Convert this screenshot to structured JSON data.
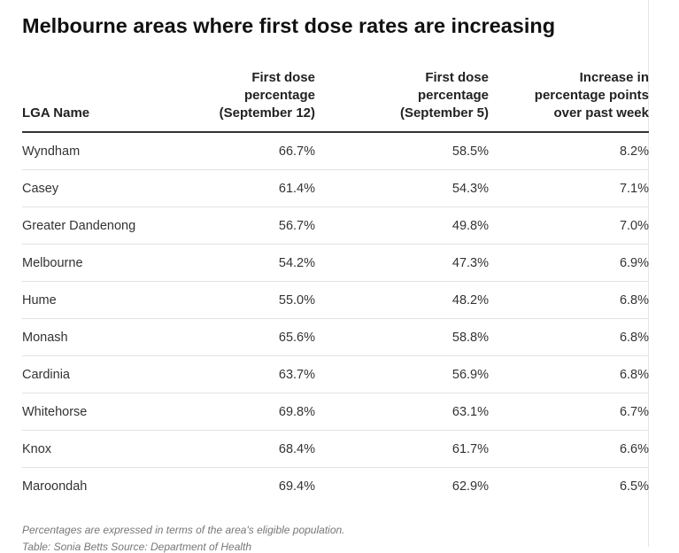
{
  "title": "Melbourne areas where first dose rates are increasing",
  "columns": {
    "lga": "LGA Name",
    "sep12": [
      "First dose",
      "percentage",
      "(September 12)"
    ],
    "sep5": [
      "First dose",
      "percentage",
      "(September 5)"
    ],
    "increase": [
      "Increase in",
      "percentage points",
      "over past week"
    ]
  },
  "chart_data": {
    "type": "table",
    "title": "Melbourne areas where first dose rates are increasing",
    "headers": [
      "LGA Name",
      "First dose percentage (September 12)",
      "First dose percentage (September 5)",
      "Increase in percentage points over past week"
    ],
    "rows": [
      [
        "Wyndham",
        "66.7%",
        "58.5%",
        "8.2%"
      ],
      [
        "Casey",
        "61.4%",
        "54.3%",
        "7.1%"
      ],
      [
        "Greater Dandenong",
        "56.7%",
        "49.8%",
        "7.0%"
      ],
      [
        "Melbourne",
        "54.2%",
        "47.3%",
        "6.9%"
      ],
      [
        "Hume",
        "55.0%",
        "48.2%",
        "6.8%"
      ],
      [
        "Monash",
        "65.6%",
        "58.8%",
        "6.8%"
      ],
      [
        "Cardinia",
        "63.7%",
        "56.9%",
        "6.8%"
      ],
      [
        "Whitehorse",
        "69.8%",
        "63.1%",
        "6.7%"
      ],
      [
        "Knox",
        "68.4%",
        "61.7%",
        "6.6%"
      ],
      [
        "Maroondah",
        "69.4%",
        "62.9%",
        "6.5%"
      ]
    ]
  },
  "footnote": "Percentages are expressed in terms of the area's eligible population.",
  "source": "Table: Sonia Betts Source: Department of Health"
}
